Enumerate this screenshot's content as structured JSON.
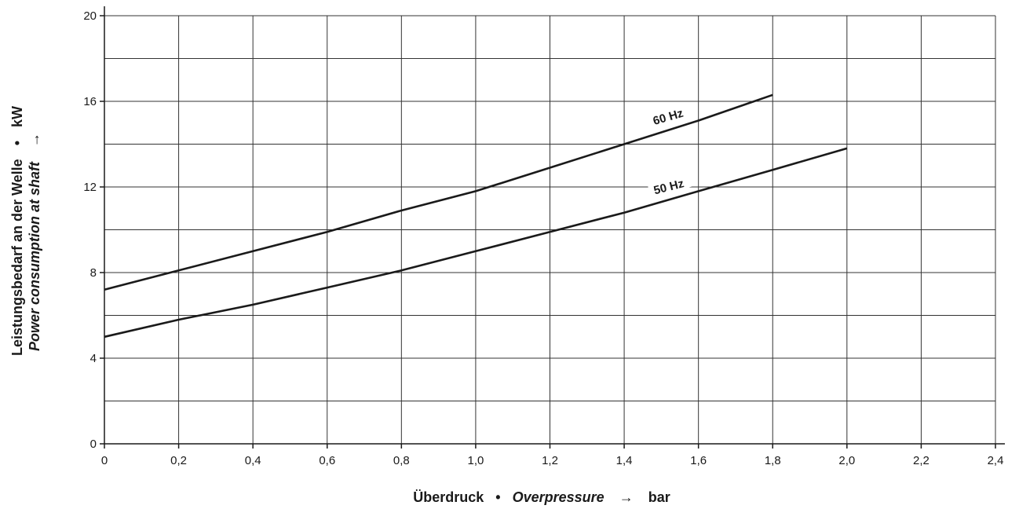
{
  "chart_data": {
    "type": "line",
    "xlabel": {
      "de": "Überdruck",
      "sep": "•",
      "en": "Overpressure",
      "arrow": "→",
      "unit": "bar"
    },
    "ylabel": {
      "de": "Leistungsbedarf an der Welle",
      "sep": "•",
      "en": "Power consumption at shaft",
      "arrow": "→",
      "unit": "kW"
    },
    "xlim": [
      0,
      2.4
    ],
    "ylim": [
      0,
      20
    ],
    "x_ticks": [
      "0",
      "0,2",
      "0,4",
      "0,6",
      "0,8",
      "1,0",
      "1,2",
      "1,4",
      "1,6",
      "1,8",
      "2,0",
      "2,2",
      "2,4"
    ],
    "x_tick_values": [
      0,
      0.2,
      0.4,
      0.6,
      0.8,
      1.0,
      1.2,
      1.4,
      1.6,
      1.8,
      2.0,
      2.2,
      2.4
    ],
    "y_ticks": [
      "0",
      "4",
      "8",
      "12",
      "16",
      "20"
    ],
    "y_tick_values": [
      0,
      4,
      8,
      12,
      16,
      20
    ],
    "grid": true,
    "legend": "inline labels on curves",
    "series": [
      {
        "name": "60 Hz",
        "x": [
          0,
          0.2,
          0.4,
          0.6,
          0.8,
          1.0,
          1.2,
          1.4,
          1.6,
          1.8
        ],
        "y": [
          7.2,
          8.1,
          9.0,
          9.9,
          10.9,
          11.8,
          12.9,
          14.0,
          15.1,
          16.3
        ]
      },
      {
        "name": "50 Hz",
        "x": [
          0,
          0.2,
          0.4,
          0.6,
          0.8,
          1.0,
          1.2,
          1.4,
          1.6,
          1.8,
          2.0
        ],
        "y": [
          5.0,
          5.8,
          6.5,
          7.3,
          8.1,
          9.0,
          9.9,
          10.8,
          11.8,
          12.8,
          13.8
        ]
      }
    ]
  }
}
